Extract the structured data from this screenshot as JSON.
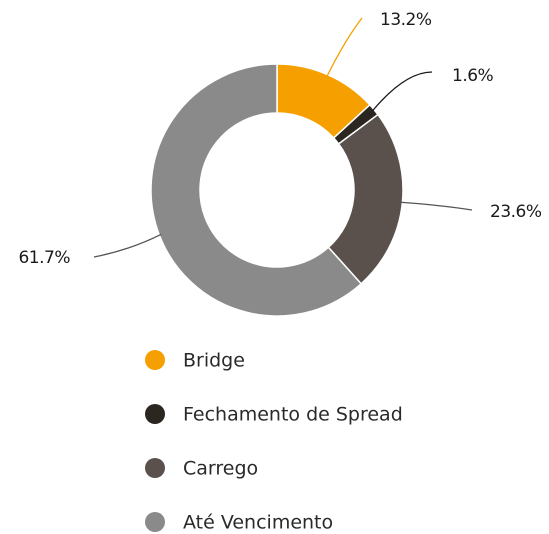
{
  "chart_data": {
    "type": "donut",
    "categories": [
      "Bridge",
      "Fechamento de Spread",
      "Carrego",
      "Até Vencimento"
    ],
    "values": [
      13.2,
      1.6,
      23.6,
      61.7
    ],
    "value_labels": [
      "13.2%",
      "1.6%",
      "23.6%",
      "61.7%"
    ],
    "colors": [
      "#f5a000",
      "#2b2620",
      "#5a514d",
      "#8a8a8a"
    ]
  }
}
